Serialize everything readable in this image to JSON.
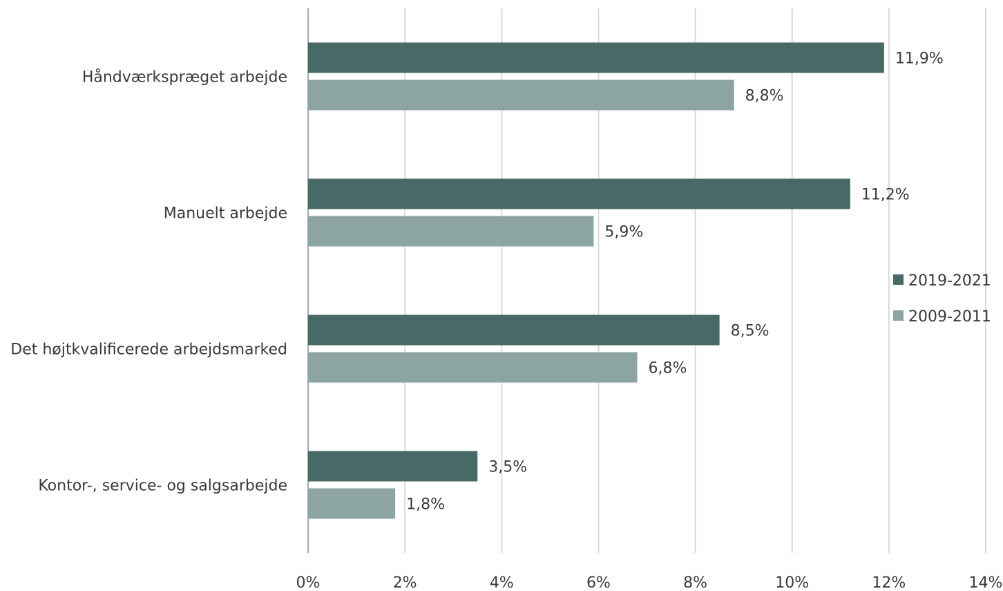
{
  "chart_data": {
    "type": "bar",
    "orientation": "horizontal",
    "categories": [
      "Håndværkspræget arbejde",
      "Manuelt arbejde",
      "Det højtkvalificerede arbejdsmarked",
      "Kontor-, service- og salgsarbejde"
    ],
    "series": [
      {
        "name": "2019-2021",
        "color": "#476a66",
        "values": [
          11.9,
          11.2,
          8.5,
          3.5
        ],
        "labels": [
          "11,9%",
          "11,2%",
          "8,5%",
          "3,5%"
        ]
      },
      {
        "name": "2009-2011",
        "color": "#8ca5a2",
        "values": [
          8.8,
          5.9,
          6.8,
          1.8
        ],
        "labels": [
          "8,8%",
          "5,9%",
          "6,8%",
          "1,8%"
        ]
      }
    ],
    "xlim": [
      0,
      14
    ],
    "xticks": [
      0,
      2,
      4,
      6,
      8,
      10,
      12,
      14
    ],
    "xtick_labels": [
      "0%",
      "2%",
      "4%",
      "6%",
      "8%",
      "10%",
      "12%",
      "14%"
    ],
    "grid": "vertical",
    "legend_position": "right"
  }
}
